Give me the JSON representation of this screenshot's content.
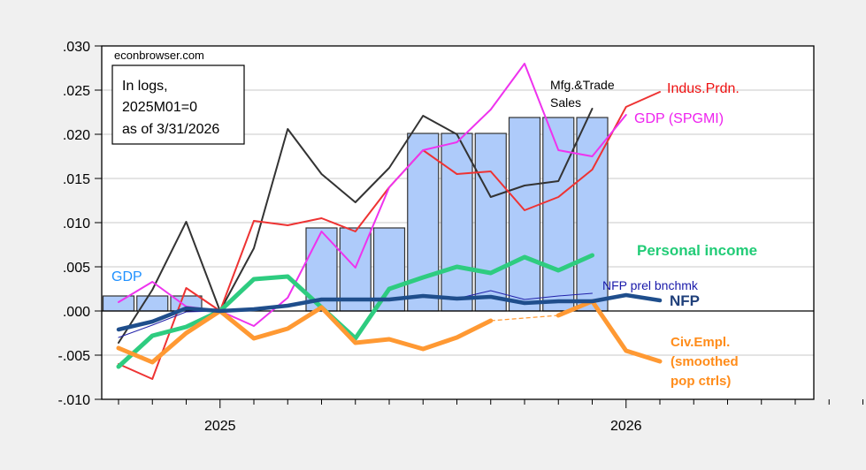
{
  "chart_data": {
    "type": "line",
    "title": "",
    "xlabel": "",
    "ylabel": "",
    "ylim": [
      -0.01,
      0.03
    ],
    "yticks": [
      ".030",
      ".025",
      ".020",
      ".015",
      ".010",
      ".005",
      ".000",
      "-.005",
      "-.010"
    ],
    "ytick_values": [
      0.03,
      0.025,
      0.02,
      0.015,
      0.01,
      0.005,
      0.0,
      -0.005,
      -0.01
    ],
    "x_start": "2024M10",
    "x_tick_count": 24,
    "x_major_labels": [
      {
        "label": "2025",
        "month_index": 3
      },
      {
        "label": "2026",
        "month_index": 15
      }
    ],
    "grid": true,
    "months": [
      "2024M10",
      "2024M11",
      "2024M12",
      "2025M01",
      "2025M02",
      "2025M03",
      "2025M04",
      "2025M05",
      "2025M06",
      "2025M07",
      "2025M08",
      "2025M09",
      "2025M10",
      "2025M11",
      "2025M12",
      "2026M01",
      "2026M02"
    ],
    "bars": {
      "name": "GDP",
      "color": "#aecbfa",
      "quarters": [
        {
          "label": "2024Q4",
          "start_index": 0,
          "value": 0.0017
        },
        {
          "label": "2025Q1",
          "start_index": 3,
          "value": 0.0
        },
        {
          "label": "2025Q2",
          "start_index": 6,
          "value": 0.0094
        },
        {
          "label": "2025Q3",
          "start_index": 9,
          "value": 0.0201
        },
        {
          "label": "2025Q4",
          "start_index": 12,
          "value": 0.0219
        }
      ]
    },
    "series": [
      {
        "name": "Mfg.&Trade Sales",
        "color": "#333333",
        "width": 2,
        "values": [
          -0.0036,
          0.0024,
          0.0101,
          0.0,
          0.0071,
          0.0206,
          0.0155,
          0.0123,
          0.0162,
          0.0221,
          0.02,
          0.0129,
          0.0142,
          0.0147,
          0.0229,
          null,
          null
        ]
      },
      {
        "name": "Indus.Prdn.",
        "color": "#ee3333",
        "width": 2,
        "values": [
          -0.006,
          -0.0077,
          0.0026,
          0.0,
          0.0102,
          0.0097,
          0.0105,
          0.009,
          0.014,
          0.0182,
          0.0155,
          0.0158,
          0.0114,
          0.0129,
          0.016,
          0.0231,
          0.0248
        ]
      },
      {
        "name": "GDP (SPGMI)",
        "color": "#ee33ee",
        "width": 2,
        "values": [
          0.001,
          0.0033,
          0.0005,
          0.0,
          -0.0017,
          0.0015,
          0.009,
          0.0049,
          0.014,
          0.0182,
          0.0191,
          0.0228,
          0.028,
          0.0182,
          0.0175,
          0.0222,
          null
        ]
      },
      {
        "name": "Personal income",
        "color": "#2ecc80",
        "width": 5,
        "values": [
          -0.0063,
          -0.0028,
          -0.0018,
          0.0,
          0.0036,
          0.0039,
          0.0004,
          -0.0031,
          0.0025,
          0.0038,
          0.005,
          0.0043,
          0.0061,
          0.0046,
          0.0063,
          null,
          null
        ]
      },
      {
        "name": "Civ.Empl. (smoothed pop ctrls)",
        "color": "#ff9933",
        "width": 5,
        "values": [
          -0.0042,
          -0.0058,
          -0.0025,
          0.0,
          -0.0031,
          -0.002,
          0.0004,
          -0.0036,
          -0.0032,
          -0.0043,
          -0.003,
          -0.0011,
          null,
          -0.0005,
          0.0011,
          -0.0045,
          -0.0057
        ],
        "gap_dashed": true
      },
      {
        "name": "NFP prel bnchmk",
        "color": "#2222aa",
        "width": 1,
        "values": [
          -0.003,
          -0.0016,
          -0.0001,
          0.0,
          0.0002,
          0.0006,
          0.0013,
          0.0013,
          0.0013,
          0.0017,
          0.0014,
          0.0023,
          0.0013,
          0.0017,
          0.002,
          null,
          null
        ]
      },
      {
        "name": "NFP",
        "color": "#1f4e8c",
        "width": 4.5,
        "values": [
          -0.0021,
          -0.0012,
          0.0003,
          0.0,
          0.0002,
          0.0006,
          0.0013,
          0.0013,
          0.0013,
          0.0017,
          0.0014,
          0.0016,
          0.0009,
          0.0011,
          0.0011,
          0.0018,
          0.0012
        ]
      }
    ],
    "annotations": {
      "source": "econbrowser.com",
      "note_lines": [
        "In logs,",
        "2025M01=0",
        "as of 3/31/2026"
      ],
      "gdp_label": "GDP",
      "mfg_label_lines": [
        "Mfg.&Trade",
        "Sales"
      ],
      "ip_label": "Indus.Prdn.",
      "spgmi_label": "GDP (SPGMI)",
      "pi_label": "Personal income",
      "nfp_prel_label": "NFP prel bnchmk",
      "nfp_label": "NFP",
      "civ_label_lines": [
        "Civ.Empl.",
        "(smoothed",
        "pop ctrls)"
      ]
    },
    "label_colors": {
      "gdp": "#1e90ff",
      "mfg": "#000000",
      "ip": "#ee1111",
      "spgmi": "#ee22ee",
      "pi": "#22cc77",
      "nfp_prel": "#1a1aaa",
      "nfp": "#1f3f7a",
      "civ": "#ff8c1a"
    }
  }
}
